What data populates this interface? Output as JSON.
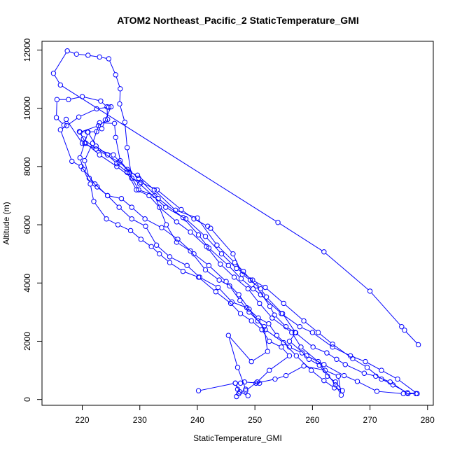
{
  "chart_data": {
    "type": "line",
    "title": "ATOM2 Northeast_Pacific_2 StaticTemperature_GMI",
    "xlabel": "StaticTemperature_GMI",
    "ylabel": "Altitude (m)",
    "xlim": [
      213,
      281
    ],
    "ylim": [
      -200,
      12300
    ],
    "x_ticks": [
      220,
      230,
      240,
      250,
      260,
      270,
      280
    ],
    "y_ticks": [
      0,
      2000,
      4000,
      6000,
      8000,
      10000,
      12000
    ],
    "grid": false,
    "legend": "none",
    "marker": "open-circle",
    "series": [
      {
        "color": "#0000ff",
        "points": [
          [
            278.4,
            1880
          ],
          [
            276.0,
            2380
          ],
          [
            275.5,
            2500
          ],
          [
            270.0,
            3720
          ],
          [
            262.0,
            5070
          ],
          [
            254.0,
            6080
          ],
          [
            216.2,
            10800
          ],
          [
            215.0,
            11200
          ],
          [
            217.4,
            11970
          ],
          [
            219.0,
            11860
          ],
          [
            221.0,
            11820
          ],
          [
            223.0,
            11760
          ],
          [
            224.6,
            11700
          ],
          [
            225.8,
            11150
          ],
          [
            226.6,
            10670
          ],
          [
            226.5,
            10150
          ],
          [
            227.4,
            9520
          ],
          [
            227.8,
            8650
          ],
          [
            228.6,
            7600
          ],
          [
            230.2,
            7450
          ],
          [
            233.0,
            7200
          ],
          [
            237.2,
            6520
          ],
          [
            239.4,
            6200
          ],
          [
            241.8,
            5950
          ],
          [
            242.3,
            5880
          ],
          [
            246.2,
            5000
          ],
          [
            247.8,
            4300
          ],
          [
            249.2,
            4100
          ],
          [
            251.0,
            3800
          ],
          [
            252.0,
            3520
          ],
          [
            254.8,
            2950
          ],
          [
            257.1,
            2290
          ],
          [
            256.0,
            2000
          ],
          [
            259.0,
            1500
          ],
          [
            262.0,
            1200
          ],
          [
            265.5,
            820
          ],
          [
            267.8,
            620
          ],
          [
            271.2,
            280
          ],
          [
            275.8,
            200
          ],
          [
            278.0,
            200
          ],
          [
            276.5,
            230
          ],
          [
            274.0,
            500
          ],
          [
            272.0,
            700
          ],
          [
            269.5,
            1100
          ],
          [
            267.0,
            1400
          ],
          [
            263.5,
            1900
          ],
          [
            261.0,
            2300
          ],
          [
            258.5,
            2700
          ],
          [
            255.0,
            3300
          ],
          [
            251.8,
            3850
          ],
          [
            249.6,
            4100
          ],
          [
            246.8,
            4500
          ],
          [
            244.2,
            5000
          ],
          [
            241.4,
            5600
          ],
          [
            238.0,
            6200
          ],
          [
            234.5,
            6600
          ],
          [
            230.0,
            7400
          ],
          [
            226.0,
            8000
          ],
          [
            223.0,
            8400
          ],
          [
            220.6,
            8800
          ],
          [
            219.6,
            9180
          ],
          [
            222.8,
            9400
          ],
          [
            224.4,
            9620
          ],
          [
            224.3,
            10050
          ],
          [
            223.2,
            10250
          ],
          [
            220.0,
            10400
          ],
          [
            217.6,
            10300
          ],
          [
            215.6,
            10300
          ],
          [
            215.5,
            9680
          ],
          [
            216.8,
            9420
          ],
          [
            217.2,
            9620
          ],
          [
            220.0,
            8800
          ],
          [
            222.4,
            8600
          ],
          [
            225.4,
            8400
          ],
          [
            228.2,
            7800
          ],
          [
            229.6,
            7700
          ],
          [
            232.5,
            7200
          ],
          [
            236.2,
            6500
          ],
          [
            240.0,
            6230
          ],
          [
            243.4,
            5300
          ],
          [
            246.5,
            4700
          ],
          [
            248.0,
            4400
          ],
          [
            250.2,
            3900
          ],
          [
            252.6,
            3200
          ],
          [
            253.4,
            2900
          ],
          [
            255.4,
            2500
          ],
          [
            257.0,
            2300
          ],
          [
            260.1,
            1800
          ],
          [
            262.5,
            1600
          ],
          [
            264.2,
            1380
          ],
          [
            265.7,
            1200
          ],
          [
            269.0,
            900
          ],
          [
            271.0,
            800
          ],
          [
            273.5,
            600
          ],
          [
            276.6,
            200
          ],
          [
            278.2,
            200
          ],
          [
            274.8,
            700
          ],
          [
            272.0,
            1000
          ],
          [
            269.2,
            1300
          ],
          [
            266.6,
            1500
          ],
          [
            263.5,
            1800
          ],
          [
            260.0,
            2300
          ],
          [
            257.8,
            2500
          ],
          [
            254.6,
            2950
          ],
          [
            251.0,
            3600
          ],
          [
            249.7,
            3800
          ],
          [
            247.6,
            4150
          ],
          [
            245.4,
            4600
          ],
          [
            242.0,
            5200
          ],
          [
            240.2,
            5650
          ],
          [
            237.5,
            6250
          ],
          [
            233.2,
            6900
          ],
          [
            229.8,
            7600
          ],
          [
            226.4,
            8150
          ],
          [
            222.4,
            8600
          ],
          [
            220.2,
            8950
          ],
          [
            219.5,
            9200
          ],
          [
            220.9,
            9180
          ],
          [
            222.5,
            9200
          ],
          [
            223.4,
            9300
          ],
          [
            224.0,
            9600
          ],
          [
            225.0,
            10050
          ],
          [
            224.6,
            10040
          ],
          [
            222.5,
            9980
          ],
          [
            219.4,
            9700
          ],
          [
            217.3,
            9400
          ],
          [
            216.2,
            9260
          ],
          [
            218.2,
            8180
          ],
          [
            219.8,
            8000
          ],
          [
            222.2,
            7400
          ],
          [
            224.4,
            7000
          ],
          [
            226.4,
            6600
          ],
          [
            228.6,
            6200
          ],
          [
            231.0,
            5950
          ],
          [
            232.9,
            5300
          ],
          [
            235.2,
            4900
          ],
          [
            238.2,
            4600
          ],
          [
            240.4,
            4200
          ],
          [
            243.6,
            3850
          ],
          [
            246.0,
            3350
          ],
          [
            248.6,
            3150
          ],
          [
            250.6,
            2800
          ],
          [
            252.4,
            2600
          ],
          [
            253.8,
            2200
          ],
          [
            256.0,
            1800
          ],
          [
            258.2,
            1600
          ],
          [
            259.4,
            1380
          ],
          [
            261.2,
            1180
          ],
          [
            262.6,
            800
          ],
          [
            264.0,
            600
          ],
          [
            265.2,
            300
          ],
          [
            263.8,
            400
          ],
          [
            262.0,
            650
          ],
          [
            259.8,
            1000
          ],
          [
            257.2,
            1500
          ],
          [
            255.0,
            1950
          ],
          [
            251.8,
            2400
          ],
          [
            250.5,
            2700
          ],
          [
            249.0,
            3100
          ],
          [
            247.2,
            3600
          ],
          [
            245.0,
            4050
          ],
          [
            242.0,
            4600
          ],
          [
            239.4,
            5000
          ],
          [
            236.6,
            5500
          ],
          [
            233.8,
            5900
          ],
          [
            230.9,
            6200
          ],
          [
            228.6,
            6600
          ],
          [
            226.8,
            6900
          ],
          [
            224.4,
            7000
          ],
          [
            222.6,
            7300
          ],
          [
            221.2,
            7600
          ],
          [
            220.4,
            8200
          ],
          [
            221.8,
            8800
          ],
          [
            223.0,
            9500
          ],
          [
            225.6,
            9480
          ],
          [
            225.8,
            9000
          ],
          [
            226.6,
            8200
          ],
          [
            227.8,
            7900
          ],
          [
            229.8,
            7200
          ],
          [
            232.6,
            7000
          ],
          [
            234.6,
            6000
          ],
          [
            236.4,
            5400
          ],
          [
            238.8,
            5100
          ],
          [
            241.4,
            4450
          ],
          [
            243.8,
            4100
          ],
          [
            245.6,
            3900
          ],
          [
            247.4,
            3400
          ],
          [
            249.0,
            3000
          ],
          [
            251.6,
            2500
          ],
          [
            252.2,
            1650
          ],
          [
            249.4,
            1300
          ],
          [
            245.4,
            2200
          ],
          [
            247.0,
            1100
          ],
          [
            248.4,
            350
          ],
          [
            247.2,
            200
          ],
          [
            246.8,
            100
          ],
          [
            247.0,
            350
          ],
          [
            246.6,
            560
          ],
          [
            247.5,
            560
          ],
          [
            248.2,
            600
          ],
          [
            250.8,
            560
          ],
          [
            250.2,
            560
          ],
          [
            253.5,
            700
          ],
          [
            255.4,
            820
          ],
          [
            258.5,
            1150
          ],
          [
            262.2,
            1000
          ],
          [
            264.5,
            800
          ],
          [
            265.0,
            150
          ],
          [
            264.0,
            500
          ],
          [
            261.0,
            1300
          ],
          [
            258.0,
            1800
          ],
          [
            256.4,
            2300
          ],
          [
            253.0,
            2800
          ],
          [
            250.8,
            3300
          ],
          [
            248.8,
            3800
          ],
          [
            246.4,
            4200
          ],
          [
            244.0,
            4650
          ],
          [
            241.6,
            5250
          ],
          [
            238.8,
            5750
          ],
          [
            236.4,
            6100
          ],
          [
            233.4,
            6600
          ],
          [
            231.6,
            7000
          ],
          [
            229.4,
            7200
          ],
          [
            227.8,
            7800
          ],
          [
            226.0,
            8100
          ],
          [
            224.4,
            8400
          ],
          [
            222.4,
            8700
          ],
          [
            221.0,
            9180
          ],
          [
            220.4,
            8800
          ],
          [
            219.6,
            8300
          ],
          [
            220.2,
            7900
          ],
          [
            221.4,
            7400
          ],
          [
            222.0,
            6800
          ],
          [
            224.2,
            6200
          ],
          [
            226.2,
            6000
          ],
          [
            228.4,
            5800
          ],
          [
            230.2,
            5500
          ],
          [
            232.0,
            5250
          ],
          [
            233.4,
            5000
          ],
          [
            235.2,
            4700
          ],
          [
            237.5,
            4400
          ],
          [
            240.2,
            4200
          ],
          [
            243.2,
            3700
          ],
          [
            245.8,
            3300
          ],
          [
            247.5,
            2950
          ],
          [
            249.4,
            2700
          ],
          [
            251.2,
            2400
          ],
          [
            252.5,
            2000
          ],
          [
            254.6,
            1800
          ],
          [
            256.0,
            1500
          ],
          [
            252.5,
            1000
          ],
          [
            250.4,
            600
          ],
          [
            248.4,
            300
          ],
          [
            248.8,
            130
          ],
          [
            247.4,
            260
          ],
          [
            246.6,
            560
          ],
          [
            240.2,
            300
          ]
        ]
      }
    ]
  }
}
